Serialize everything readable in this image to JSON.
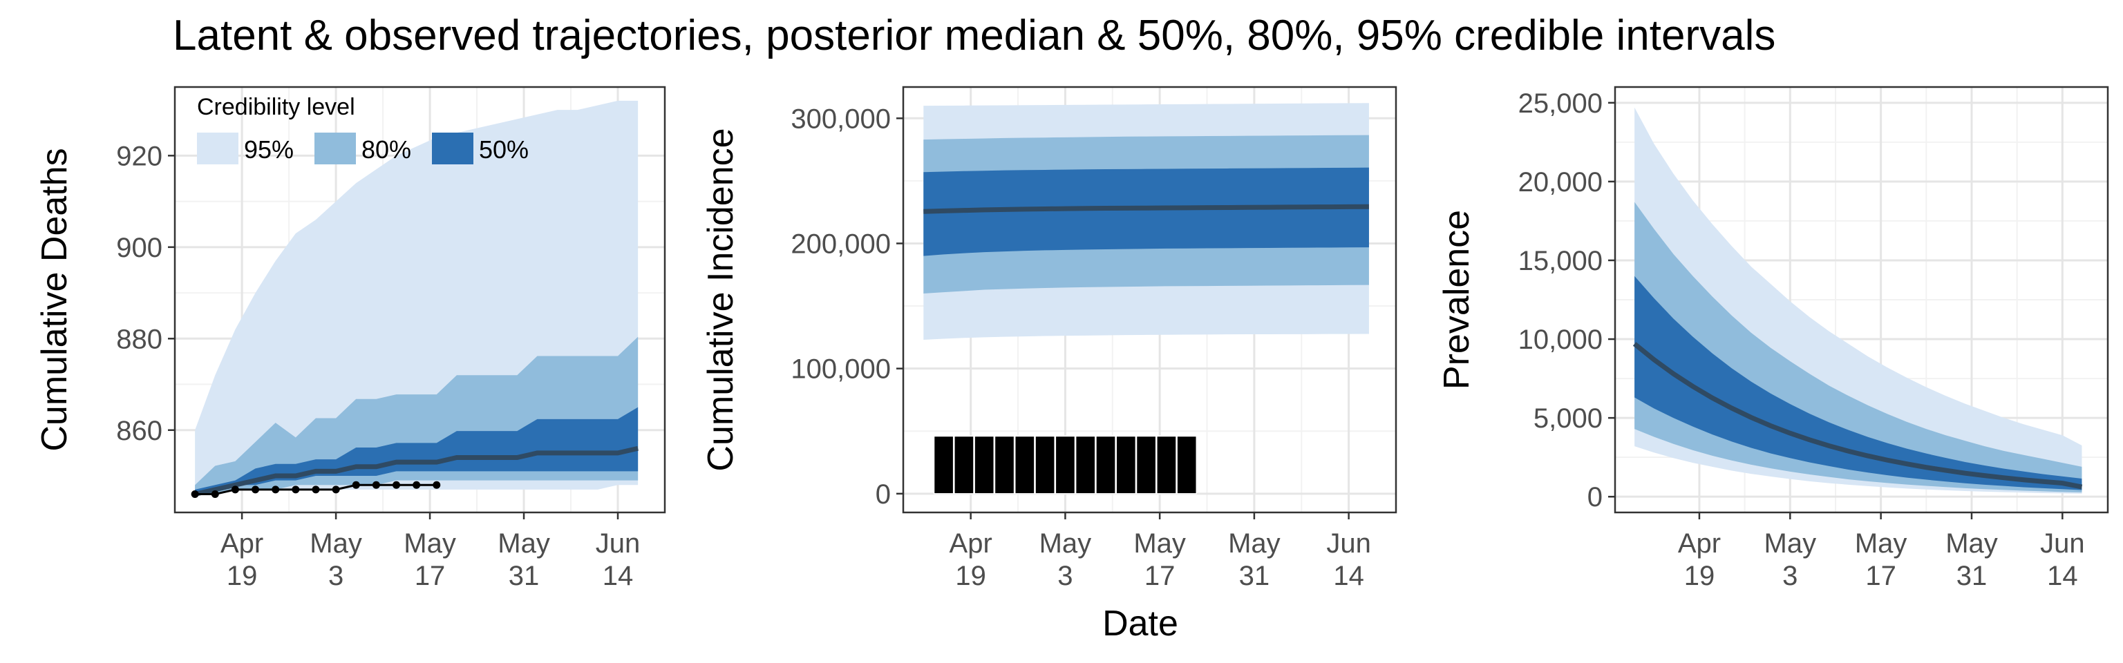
{
  "figure": {
    "title": "Latent & observed trajectories, posterior median & 50%, 80%, 95% credible intervals",
    "xlabel": "Date"
  },
  "colors": {
    "ci95": "#d8e6f5",
    "ci80": "#90bcdc",
    "ci50": "#2b6fb2",
    "median": "#2f4a63",
    "observed": "#000000",
    "grid_major": "#e5e5e5",
    "grid_minor": "#f2f2f2"
  },
  "legend": {
    "title": "Credibility level",
    "items": [
      {
        "label": "95%",
        "color": "#d8e6f5"
      },
      {
        "label": "80%",
        "color": "#90bcdc"
      },
      {
        "label": "50%",
        "color": "#2b6fb2"
      }
    ]
  },
  "chart_data": [
    {
      "type": "area",
      "ylabel": "Cumulative Deaths",
      "x_ticks": [
        "2020-04-19",
        "2020-05-03",
        "2020-05-17",
        "2020-05-31",
        "2020-06-14"
      ],
      "x_tick_labels": [
        [
          "Apr",
          "19"
        ],
        [
          "May",
          "3"
        ],
        [
          "May",
          "17"
        ],
        [
          "May",
          "31"
        ],
        [
          "Jun",
          "14"
        ]
      ],
      "xlim": [
        "2020-04-09",
        "2020-06-21"
      ],
      "y_ticks": [
        860,
        880,
        900,
        920
      ],
      "y_tick_labels": [
        "860",
        "880",
        "900",
        "920"
      ],
      "ylim": [
        842,
        935
      ],
      "grid": true,
      "legend": "top-left",
      "x": [
        "2020-04-12",
        "2020-04-15",
        "2020-04-18",
        "2020-04-21",
        "2020-04-24",
        "2020-04-27",
        "2020-04-30",
        "2020-05-03",
        "2020-05-06",
        "2020-05-09",
        "2020-05-12",
        "2020-05-15",
        "2020-05-18",
        "2020-05-21",
        "2020-05-24",
        "2020-05-27",
        "2020-05-30",
        "2020-06-02",
        "2020-06-05",
        "2020-06-08",
        "2020-06-11",
        "2020-06-14",
        "2020-06-17"
      ],
      "series": [
        {
          "name": "95%",
          "lower": [
            846,
            846,
            847,
            847,
            847,
            847,
            847,
            847,
            847,
            847,
            847,
            847,
            847,
            847,
            847,
            847,
            847,
            847,
            847,
            847,
            847,
            848,
            848
          ],
          "upper": [
            860,
            872,
            882,
            890,
            897,
            903,
            906,
            910,
            914,
            917,
            920,
            922,
            924,
            925,
            926,
            927,
            928,
            929,
            930,
            930,
            931,
            932,
            932
          ]
        },
        {
          "name": "80%",
          "lower": [
            846,
            846,
            847,
            847,
            847,
            848,
            848,
            848,
            848,
            848,
            849,
            849,
            849,
            849,
            849,
            849,
            849,
            849,
            849,
            849,
            849,
            849,
            849
          ]
        },
        {
          "name": "50%",
          "lower": [
            846,
            847,
            848,
            848,
            849,
            849,
            850,
            850,
            850,
            850,
            851,
            851,
            851,
            851,
            851,
            851,
            851,
            851,
            851,
            851,
            851,
            851,
            851
          ]
        },
        {
          "name": "median",
          "values": [
            846,
            847,
            848,
            849,
            850,
            850,
            851,
            851,
            852,
            852,
            853,
            853,
            853,
            854,
            854,
            854,
            854,
            855,
            855,
            855,
            855,
            855,
            856
          ]
        },
        {
          "name": "observed",
          "x": [
            "2020-04-12",
            "2020-04-15",
            "2020-04-18",
            "2020-04-21",
            "2020-04-24",
            "2020-04-27",
            "2020-04-30",
            "2020-05-03",
            "2020-05-06",
            "2020-05-09",
            "2020-05-12",
            "2020-05-15",
            "2020-05-18"
          ],
          "values": [
            846,
            846,
            847,
            847,
            847,
            847,
            847,
            847,
            848,
            848,
            848,
            848,
            848
          ]
        }
      ]
    },
    {
      "type": "area",
      "ylabel": "Cumulative Incidence",
      "x_ticks": [
        "2020-04-19",
        "2020-05-03",
        "2020-05-17",
        "2020-05-31",
        "2020-06-14"
      ],
      "x_tick_labels": [
        [
          "Apr",
          "19"
        ],
        [
          "May",
          "3"
        ],
        [
          "May",
          "17"
        ],
        [
          "May",
          "31"
        ],
        [
          "Jun",
          "14"
        ]
      ],
      "xlim": [
        "2020-04-09",
        "2020-06-21"
      ],
      "y_ticks": [
        0,
        100000,
        200000,
        300000
      ],
      "y_tick_labels": [
        "0",
        "100,000",
        "200,000",
        "300,000"
      ],
      "ylim": [
        -15000,
        325000
      ],
      "grid": true,
      "x": [
        "2020-04-12",
        "2020-04-15",
        "2020-04-18",
        "2020-04-21",
        "2020-04-24",
        "2020-04-27",
        "2020-04-30",
        "2020-05-03",
        "2020-05-06",
        "2020-05-09",
        "2020-05-12",
        "2020-05-15",
        "2020-05-18",
        "2020-05-21",
        "2020-05-24",
        "2020-05-27",
        "2020-05-30",
        "2020-06-02",
        "2020-06-05",
        "2020-06-08",
        "2020-06-11",
        "2020-06-14",
        "2020-06-17"
      ],
      "series": [
        {
          "name": "95%",
          "lower": [
            123000,
            123800,
            124500,
            125000,
            125400,
            125700,
            126000,
            126200,
            126400,
            126600,
            126800,
            126900,
            127000,
            127100,
            127200,
            127300,
            127400,
            127400,
            127500,
            127500,
            127600,
            127600,
            127700
          ],
          "upper": [
            310000,
            310100,
            310200,
            310300,
            310400,
            310500,
            310600,
            310700,
            310800,
            310900,
            311000,
            311100,
            311200,
            311300,
            311400,
            311500,
            311600,
            311700,
            311800,
            311900,
            312000,
            312100,
            312200
          ]
        },
        {
          "name": "80%",
          "lower": [
            160000,
            161000,
            162000,
            163000,
            163500,
            164000,
            164400,
            164700,
            165000,
            165200,
            165400,
            165600,
            165800,
            165900,
            166000,
            166100,
            166200,
            166300,
            166400,
            166500,
            166600,
            166700,
            166800
          ],
          "upper": [
            283000,
            283300,
            283600,
            283900,
            284200,
            284400,
            284600,
            284800,
            285000,
            285200,
            285400,
            285500,
            285600,
            285700,
            285800,
            285900,
            286000,
            286100,
            286200,
            286300,
            286400,
            286500,
            286600
          ]
        },
        {
          "name": "50%",
          "lower": [
            190000,
            191200,
            192200,
            193000,
            193600,
            194100,
            194500,
            194800,
            195100,
            195300,
            195500,
            195700,
            195900,
            196000,
            196100,
            196200,
            196300,
            196400,
            196500,
            196600,
            196700,
            196800,
            196900
          ],
          "upper": [
            257000,
            257400,
            257800,
            258100,
            258400,
            258600,
            258800,
            259000,
            259200,
            259300,
            259400,
            259500,
            259600,
            259700,
            259800,
            259900,
            260000,
            260100,
            260200,
            260300,
            260400,
            260500,
            260600
          ]
        },
        {
          "name": "median",
          "values": [
            225500,
            226000,
            226400,
            226800,
            227100,
            227400,
            227600,
            227800,
            228000,
            228100,
            228200,
            228300,
            228400,
            228500,
            228600,
            228700,
            228800,
            228900,
            229000,
            229100,
            229200,
            229300,
            229400
          ]
        },
        {
          "name": "observed",
          "type": "bar",
          "x": [
            "2020-04-15",
            "2020-04-18",
            "2020-04-21",
            "2020-04-24",
            "2020-04-27",
            "2020-04-30",
            "2020-05-03",
            "2020-05-06",
            "2020-05-09",
            "2020-05-12",
            "2020-05-15",
            "2020-05-18",
            "2020-05-21"
          ],
          "values": [
            46000,
            46000,
            46000,
            46000,
            46000,
            46000,
            46000,
            46000,
            46000,
            46000,
            46000,
            46000,
            46000
          ]
        }
      ]
    },
    {
      "type": "area",
      "ylabel": "Prevalence",
      "x_ticks": [
        "2020-04-19",
        "2020-05-03",
        "2020-05-17",
        "2020-05-31",
        "2020-06-14"
      ],
      "x_tick_labels": [
        [
          "Apr",
          "19"
        ],
        [
          "May",
          "3"
        ],
        [
          "May",
          "17"
        ],
        [
          "May",
          "31"
        ],
        [
          "Jun",
          "14"
        ]
      ],
      "xlim": [
        "2020-04-06",
        "2020-06-21"
      ],
      "y_ticks": [
        0,
        5000,
        10000,
        15000,
        20000,
        25000
      ],
      "y_tick_labels": [
        "0",
        "5,000",
        "10,000",
        "15,000",
        "20,000",
        "25,000"
      ],
      "ylim": [
        -1000,
        26000
      ],
      "grid": true,
      "x": [
        "2020-04-09",
        "2020-04-12",
        "2020-04-15",
        "2020-04-18",
        "2020-04-21",
        "2020-04-24",
        "2020-04-27",
        "2020-04-30",
        "2020-05-03",
        "2020-05-06",
        "2020-05-09",
        "2020-05-12",
        "2020-05-15",
        "2020-05-18",
        "2020-05-21",
        "2020-05-24",
        "2020-05-27",
        "2020-05-30",
        "2020-06-02",
        "2020-06-05",
        "2020-06-08",
        "2020-06-11",
        "2020-06-14",
        "2020-06-17"
      ],
      "series": [
        {
          "name": "95%",
          "lower": [
            3200,
            2800,
            2450,
            2150,
            1900,
            1650,
            1450,
            1280,
            1120,
            980,
            860,
            760,
            670,
            590,
            520,
            460,
            410,
            360,
            320,
            290,
            260,
            230,
            210,
            190
          ],
          "upper": [
            24700,
            22400,
            20500,
            18800,
            17300,
            15900,
            14600,
            13500,
            12400,
            11400,
            10500,
            9700,
            8900,
            8200,
            7550,
            6950,
            6400,
            5900,
            5450,
            5000,
            4600,
            4250,
            3900,
            3250
          ]
        },
        {
          "name": "80%",
          "lower": [
            4300,
            3800,
            3350,
            2950,
            2600,
            2300,
            2030,
            1800,
            1590,
            1410,
            1250,
            1100,
            980,
            870,
            770,
            690,
            610,
            540,
            480,
            430,
            380,
            340,
            300,
            270
          ],
          "upper": [
            18700,
            17000,
            15400,
            14000,
            12700,
            11500,
            10400,
            9450,
            8600,
            7800,
            7050,
            6400,
            5800,
            5250,
            4750,
            4300,
            3900,
            3550,
            3200,
            2900,
            2650,
            2400,
            2150,
            1900
          ]
        },
        {
          "name": "50%",
          "lower": [
            6300,
            5600,
            5000,
            4450,
            3950,
            3500,
            3100,
            2750,
            2450,
            2180,
            1940,
            1720,
            1530,
            1360,
            1210,
            1080,
            960,
            850,
            760,
            680,
            600,
            540,
            480,
            420
          ],
          "upper": [
            14000,
            12600,
            11300,
            10150,
            9100,
            8150,
            7300,
            6550,
            5880,
            5270,
            4720,
            4230,
            3790,
            3400,
            3050,
            2740,
            2460,
            2200,
            1980,
            1780,
            1600,
            1430,
            1290,
            1150
          ]
        },
        {
          "name": "median",
          "values": [
            9700,
            8700,
            7800,
            7000,
            6270,
            5620,
            5030,
            4500,
            4030,
            3610,
            3230,
            2890,
            2590,
            2320,
            2080,
            1860,
            1670,
            1490,
            1340,
            1200,
            1070,
            960,
            860,
            620
          ]
        }
      ]
    }
  ]
}
